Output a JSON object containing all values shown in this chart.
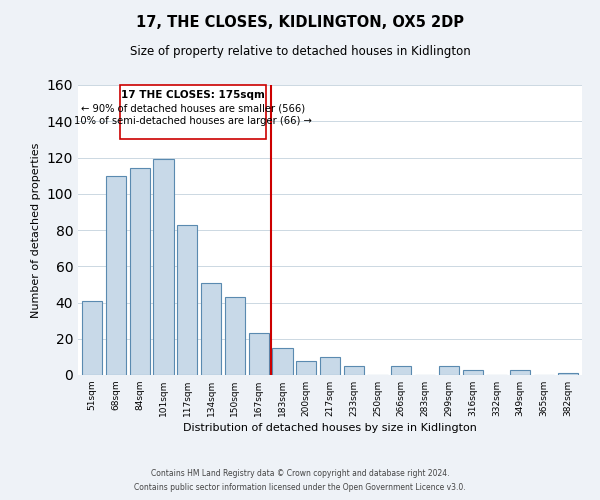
{
  "title": "17, THE CLOSES, KIDLINGTON, OX5 2DP",
  "subtitle": "Size of property relative to detached houses in Kidlington",
  "xlabel": "Distribution of detached houses by size in Kidlington",
  "ylabel": "Number of detached properties",
  "bar_labels": [
    "51sqm",
    "68sqm",
    "84sqm",
    "101sqm",
    "117sqm",
    "134sqm",
    "150sqm",
    "167sqm",
    "183sqm",
    "200sqm",
    "217sqm",
    "233sqm",
    "250sqm",
    "266sqm",
    "283sqm",
    "299sqm",
    "316sqm",
    "332sqm",
    "349sqm",
    "365sqm",
    "382sqm"
  ],
  "bar_values": [
    41,
    110,
    114,
    119,
    83,
    51,
    43,
    23,
    15,
    8,
    10,
    5,
    0,
    5,
    0,
    5,
    3,
    0,
    3,
    0,
    1
  ],
  "bar_color": "#c8d9e8",
  "bar_edge_color": "#5a8ab0",
  "property_line_x": 7.5,
  "annotation_line1": "17 THE CLOSES: 175sqm",
  "annotation_line2": "← 90% of detached houses are smaller (566)",
  "annotation_line3": "10% of semi-detached houses are larger (66) →",
  "vline_color": "#cc0000",
  "ylim": [
    0,
    160
  ],
  "footnote1": "Contains HM Land Registry data © Crown copyright and database right 2024.",
  "footnote2": "Contains public sector information licensed under the Open Government Licence v3.0.",
  "bg_color": "#eef2f7",
  "plot_bg_color": "#ffffff",
  "grid_color": "#ccd8e2"
}
